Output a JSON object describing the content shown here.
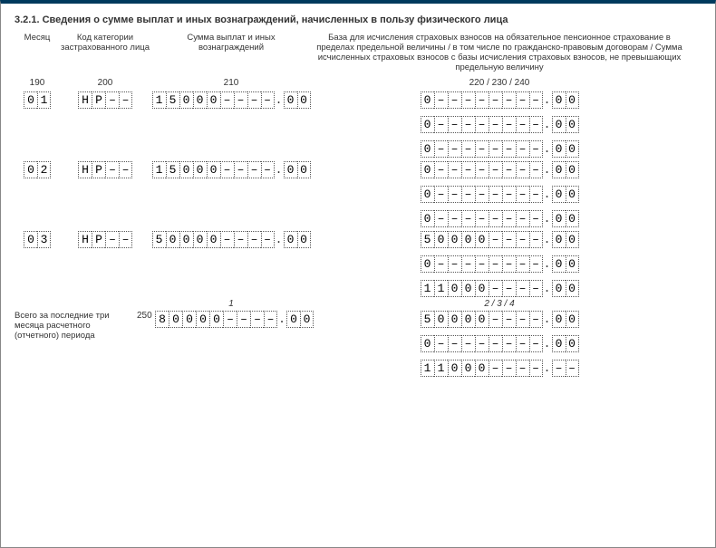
{
  "title": "3.2.1. Сведения о сумме выплат и иных вознаграждений, начисленных в пользу физического лица",
  "headers": {
    "month": "Месяц",
    "code": "Код категории застрахованного лица",
    "sum": "Сумма выплат и иных вознаграждений",
    "base": "База для исчисления страховых взносов на обязательное пенсионное страхование в пределах предельной величины / в том числе по гражданско-правовым договорам / Сумма исчисленных страховых взносов с базы исчисления страховых взносов, не превышающих предельную величину"
  },
  "colcodes": {
    "month": "190",
    "code": "200",
    "sum": "210",
    "base": "220 / 230 / 240"
  },
  "rows": [
    {
      "month": "01",
      "code": "НР––",
      "sum_int": "15000––––",
      "sum_dec": "00",
      "base": [
        {
          "int": "0––––––––",
          "dec": "00"
        },
        {
          "int": "0––––––––",
          "dec": "00"
        },
        {
          "int": "0––––––––",
          "dec": "00"
        }
      ]
    },
    {
      "month": "02",
      "code": "НР––",
      "sum_int": "15000––––",
      "sum_dec": "00",
      "base": [
        {
          "int": "0––––––––",
          "dec": "00"
        },
        {
          "int": "0––––––––",
          "dec": "00"
        },
        {
          "int": "0––––––––",
          "dec": "00"
        }
      ]
    },
    {
      "month": "03",
      "code": "НР––",
      "sum_int": "50000––––",
      "sum_dec": "00",
      "base": [
        {
          "int": "50000––––",
          "dec": "00"
        },
        {
          "int": "0––––––––",
          "dec": "00"
        },
        {
          "int": "11000––––",
          "dec": "00"
        }
      ]
    }
  ],
  "notes": {
    "sum": "1",
    "base": "2 / 3 / 4"
  },
  "total": {
    "label": "Всего за последние три месяца расчетного (отчетного) периода",
    "code": "250",
    "sum_int": "80000––––",
    "sum_dec": "00",
    "base": [
      {
        "int": "50000––––",
        "dec": "00"
      },
      {
        "int": "0––––––––",
        "dec": "00"
      },
      {
        "int": "11000––––",
        "dec": "––"
      }
    ]
  }
}
